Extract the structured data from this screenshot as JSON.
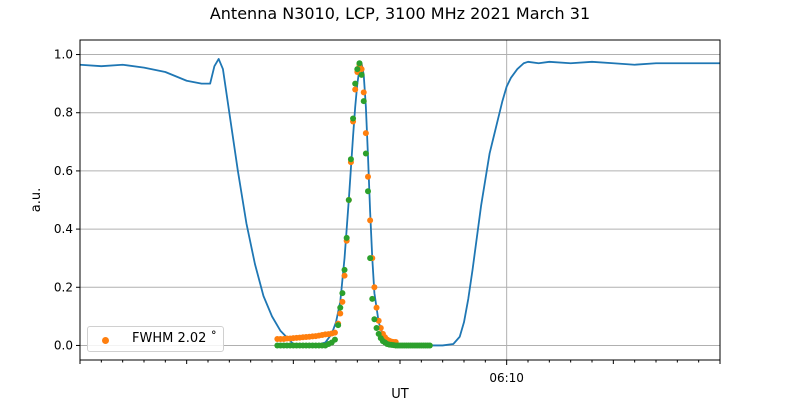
{
  "colors": {
    "curve": "#1f77b4",
    "fwhm_points": "#ff7f0e",
    "fit_points": "#2ca02c",
    "grid": "#b0b0b0"
  },
  "chart_data": {
    "type": "line",
    "title": "Antenna N3010, LCP, 3100 MHz 2021 March 31",
    "xlabel": "UT",
    "ylabel": "a.u.",
    "x_unit": "minutes relative to 06:10 UT",
    "xlim": [
      -20.0,
      10.0
    ],
    "ylim": [
      -0.05,
      1.05
    ],
    "x_major_ticks": [
      {
        "value": 0,
        "label": "06:10"
      }
    ],
    "x_minor_ticks": [
      -20,
      -15,
      -10,
      -5,
      5,
      10
    ],
    "y_ticks": [
      0.0,
      0.2,
      0.4,
      0.6,
      0.8,
      1.0
    ],
    "y_tick_labels": [
      "0.0",
      "0.2",
      "0.4",
      "0.6",
      "0.8",
      "1.0"
    ],
    "grid": true,
    "legend_position": "lower-left",
    "legend": [
      "FWHM 2.02 ˚"
    ],
    "series": [
      {
        "kind": "line",
        "x": [
          -20.0,
          -19.0,
          -18.0,
          -17.0,
          -16.0,
          -15.0,
          -14.3,
          -13.9,
          -13.7,
          -13.5,
          -13.3,
          -13.0,
          -12.6,
          -12.2,
          -11.8,
          -11.4,
          -11.0,
          -10.6,
          -10.2,
          -10.0,
          -9.5,
          -9.0,
          -8.5,
          -8.2,
          -8.0,
          -7.8,
          -7.6,
          -7.4,
          -7.2,
          -7.1,
          -7.0,
          -6.9,
          -6.8,
          -6.7,
          -6.6,
          -6.5,
          -6.4,
          -6.3,
          -6.2,
          -6.0,
          -5.8,
          -5.6,
          -5.4,
          -5.2,
          -5.0,
          -4.6,
          -4.0,
          -3.5,
          -3.0,
          -2.5,
          -2.2,
          -2.0,
          -1.8,
          -1.6,
          -1.4,
          -1.2,
          -1.0,
          -0.8,
          -0.6,
          -0.4,
          -0.2,
          0.0,
          0.2,
          0.5,
          0.8,
          1.0,
          1.5,
          2.0,
          3.0,
          4.0,
          5.0,
          6.0,
          7.0,
          8.0,
          9.0,
          10.0
        ],
        "y": [
          0.965,
          0.96,
          0.965,
          0.955,
          0.94,
          0.91,
          0.9,
          0.9,
          0.96,
          0.985,
          0.95,
          0.8,
          0.6,
          0.42,
          0.28,
          0.17,
          0.1,
          0.05,
          0.02,
          0.005,
          0.0,
          0.0,
          0.01,
          0.04,
          0.08,
          0.15,
          0.3,
          0.5,
          0.72,
          0.82,
          0.9,
          0.95,
          0.97,
          0.93,
          0.82,
          0.65,
          0.46,
          0.3,
          0.18,
          0.08,
          0.035,
          0.015,
          0.005,
          0.0,
          0.0,
          0.0,
          0.0,
          0.0,
          0.0,
          0.005,
          0.03,
          0.08,
          0.16,
          0.26,
          0.37,
          0.48,
          0.57,
          0.66,
          0.72,
          0.78,
          0.84,
          0.89,
          0.92,
          0.95,
          0.97,
          0.975,
          0.97,
          0.975,
          0.97,
          0.975,
          0.97,
          0.965,
          0.97,
          0.97,
          0.97,
          0.97
        ]
      },
      {
        "kind": "scatter",
        "name": "FWHM 2.02 ˚",
        "x": [
          -10.75,
          -10.6,
          -10.45,
          -10.3,
          -10.15,
          -10.0,
          -9.85,
          -9.7,
          -9.55,
          -9.4,
          -9.25,
          -9.1,
          -8.95,
          -8.8,
          -8.65,
          -8.5,
          -8.35,
          -8.2,
          -8.05,
          -7.9,
          -7.8,
          -7.7,
          -7.6,
          -7.5,
          -7.4,
          -7.3,
          -7.2,
          -7.1,
          -7.0,
          -6.9,
          -6.8,
          -6.7,
          -6.6,
          -6.5,
          -6.4,
          -6.3,
          -6.2,
          -6.1,
          -6.0,
          -5.9,
          -5.8,
          -5.7,
          -5.6,
          -5.5,
          -5.4,
          -5.3,
          -5.2
        ],
        "y": [
          0.022,
          0.022,
          0.022,
          0.024,
          0.024,
          0.025,
          0.026,
          0.027,
          0.028,
          0.029,
          0.03,
          0.031,
          0.032,
          0.034,
          0.036,
          0.038,
          0.039,
          0.041,
          0.044,
          0.075,
          0.11,
          0.15,
          0.24,
          0.36,
          0.5,
          0.63,
          0.77,
          0.88,
          0.94,
          0.965,
          0.95,
          0.87,
          0.73,
          0.58,
          0.43,
          0.3,
          0.2,
          0.13,
          0.085,
          0.06,
          0.04,
          0.028,
          0.02,
          0.016,
          0.013,
          0.012,
          0.012
        ]
      },
      {
        "kind": "scatter",
        "x": [
          -10.75,
          -10.6,
          -10.45,
          -10.3,
          -10.15,
          -10.0,
          -9.85,
          -9.7,
          -9.55,
          -9.4,
          -9.25,
          -9.1,
          -8.95,
          -8.8,
          -8.65,
          -8.5,
          -8.35,
          -8.2,
          -8.05,
          -7.9,
          -7.8,
          -7.7,
          -7.6,
          -7.5,
          -7.4,
          -7.3,
          -7.2,
          -7.1,
          -7.0,
          -6.9,
          -6.8,
          -6.7,
          -6.6,
          -6.5,
          -6.4,
          -6.3,
          -6.2,
          -6.1,
          -6.0,
          -5.9,
          -5.8,
          -5.7,
          -5.6,
          -5.5,
          -5.4,
          -5.3,
          -5.2,
          -5.1,
          -5.0,
          -4.9,
          -4.8,
          -4.7,
          -4.6,
          -4.5,
          -4.4,
          -4.3,
          -4.2,
          -4.1,
          -4.0,
          -3.9,
          -3.8,
          -3.7,
          -3.6
        ],
        "y": [
          0.0,
          0.0,
          0.0,
          0.0,
          0.0,
          0.0,
          0.0,
          0.0,
          0.0,
          0.0,
          0.0,
          0.0,
          0.0,
          0.0,
          0.0,
          0.0,
          0.005,
          0.01,
          0.02,
          0.07,
          0.13,
          0.18,
          0.26,
          0.37,
          0.5,
          0.64,
          0.78,
          0.9,
          0.95,
          0.97,
          0.93,
          0.84,
          0.66,
          0.53,
          0.3,
          0.16,
          0.09,
          0.06,
          0.04,
          0.025,
          0.015,
          0.01,
          0.005,
          0.003,
          0.002,
          0.001,
          0.0,
          0.0,
          0.0,
          0.0,
          0.0,
          0.0,
          0.0,
          0.0,
          0.0,
          0.0,
          0.0,
          0.0,
          0.0,
          0.0,
          0.0,
          0.0,
          0.0
        ]
      }
    ]
  }
}
